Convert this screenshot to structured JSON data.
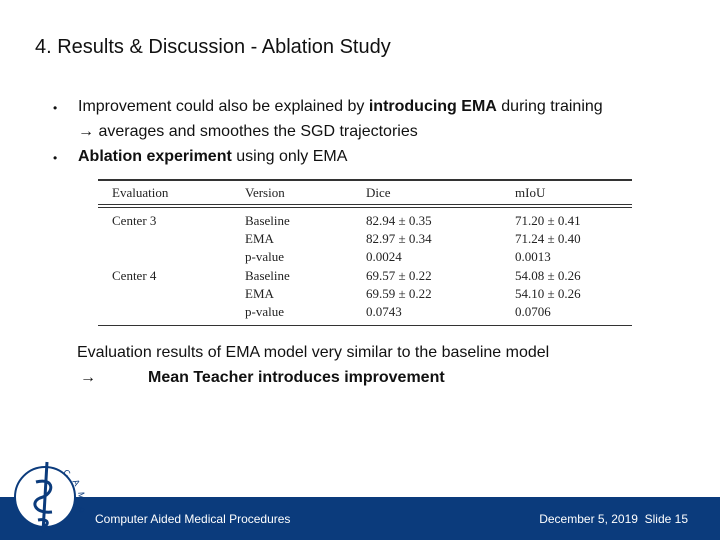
{
  "title": "4. Results & Discussion - Ablation Study",
  "bullets": [
    {
      "lines": [
        [
          {
            "text": "Improvement could also be explained by ",
            "bold": false
          },
          {
            "text": "introducing EMA",
            "bold": true
          },
          {
            "text": " during training",
            "bold": false
          }
        ],
        [
          {
            "text": "→ averages and smoothes the SGD trajectories",
            "bold": false
          }
        ]
      ]
    },
    {
      "lines": [
        [
          {
            "text": "Ablation experiment",
            "bold": true
          },
          {
            "text": " using only EMA",
            "bold": false
          }
        ]
      ]
    }
  ],
  "table": {
    "columns": [
      "Evaluation",
      "Version",
      "Dice",
      "mIoU"
    ],
    "rows": [
      [
        "Center 3",
        "Baseline",
        "82.94 ± 0.35",
        "71.20 ± 0.41"
      ],
      [
        null,
        "EMA",
        "82.97 ± 0.34",
        "71.24 ± 0.40"
      ],
      [
        null,
        "p-value",
        "0.0024",
        "0.0013"
      ],
      [
        "Center 4",
        "Baseline",
        "69.57 ± 0.22",
        "54.08 ± 0.26"
      ],
      [
        null,
        "EMA",
        "69.59 ± 0.22",
        "54.10 ± 0.26"
      ],
      [
        null,
        "p-value",
        "0.0743",
        "0.0706"
      ]
    ]
  },
  "conclusion": {
    "text": "Evaluation results of EMA model very similar to the baseline model",
    "arrow": "→",
    "highlight": "Mean Teacher introduces improvement"
  },
  "footer": {
    "logo": "CAMP",
    "institution": "Computer Aided Medical Procedures",
    "date": "December 5, 2019",
    "slide": "Slide 15"
  }
}
